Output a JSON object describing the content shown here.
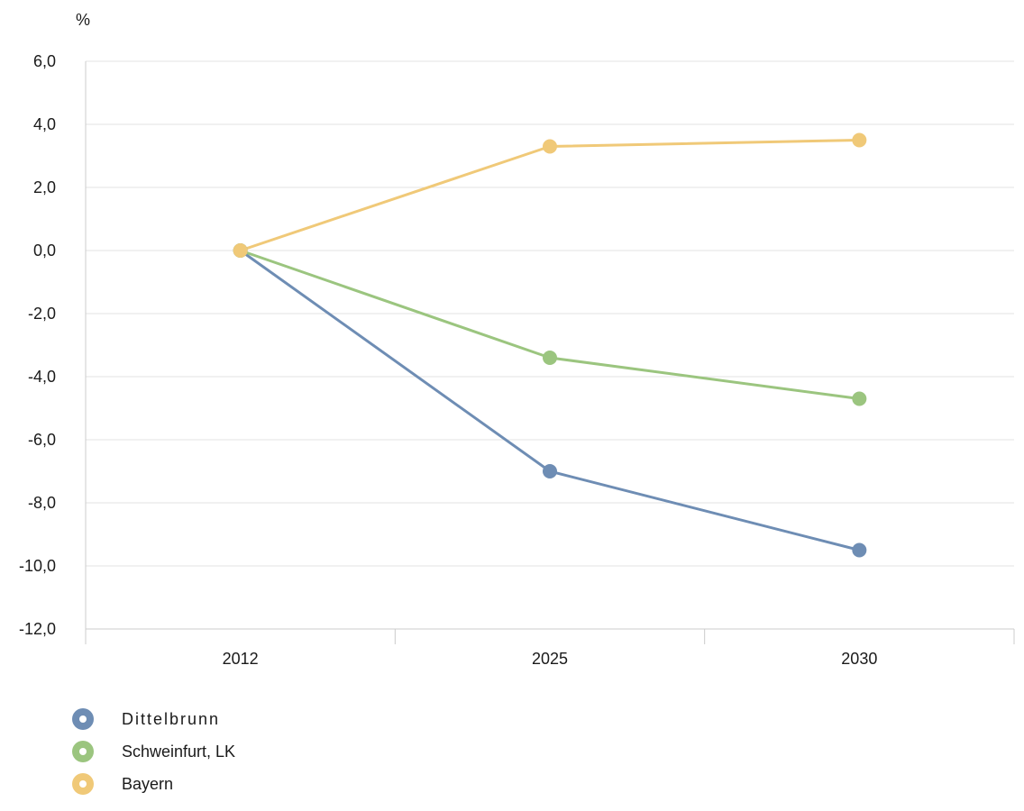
{
  "chart_data": {
    "type": "line",
    "unit_label": "%",
    "categories": [
      "2012",
      "2025",
      "2030"
    ],
    "y_tick_labels": [
      "6,0",
      "4,0",
      "2,0",
      "0,0",
      "-2,0",
      "-4,0",
      "-6,0",
      "-8,0",
      "-10,0",
      "-12,0"
    ],
    "y_ticks": [
      6,
      4,
      2,
      0,
      -2,
      -4,
      -6,
      -8,
      -10,
      -12
    ],
    "ylim": [
      -12,
      6
    ],
    "grid": true,
    "legend_position": "bottom-left",
    "series": [
      {
        "name": "Dittelbrunn",
        "values": [
          0,
          -7.0,
          -9.5
        ],
        "color": "#6e8db4"
      },
      {
        "name": "Schweinfurt, LK",
        "values": [
          0,
          -3.4,
          -4.7
        ],
        "color": "#9bc57f"
      },
      {
        "name": "Bayern",
        "values": [
          0,
          3.3,
          3.5
        ],
        "color": "#f0c978"
      }
    ]
  }
}
